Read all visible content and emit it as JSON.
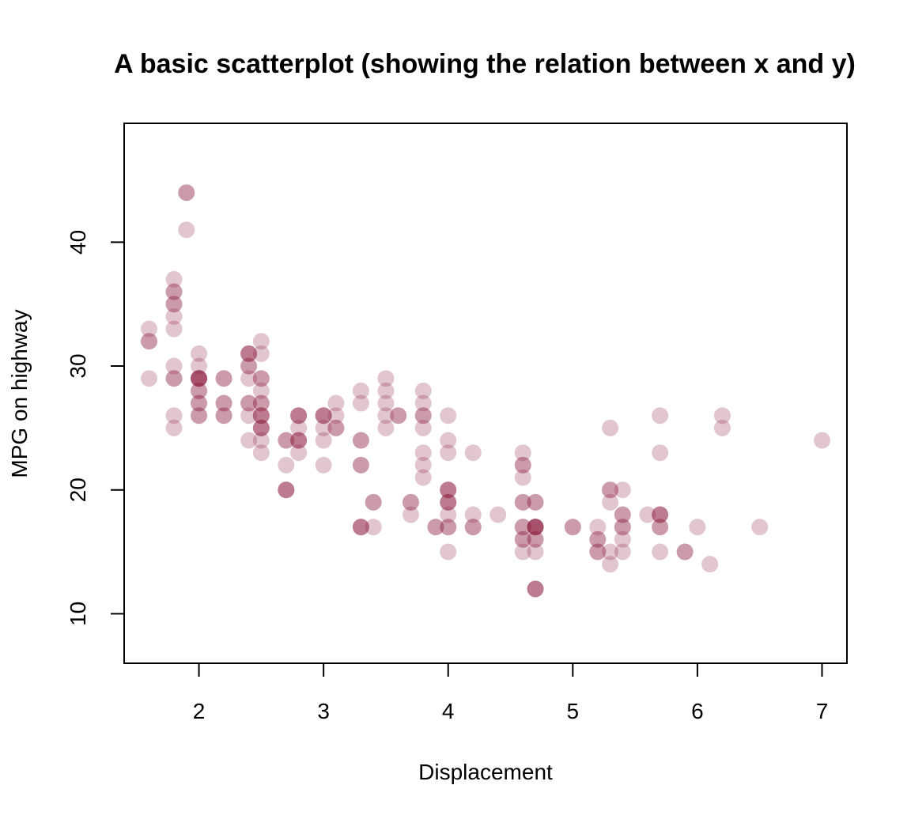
{
  "chart_data": {
    "type": "scatter",
    "title": "A basic scatterplot (showing the relation between x and y)",
    "xlabel": "Displacement",
    "ylabel": "MPG on highway",
    "xlim": [
      1.4,
      7.2
    ],
    "ylim": [
      6,
      49.6
    ],
    "x_ticks": [
      "2",
      "3",
      "4",
      "5",
      "6",
      "7"
    ],
    "y_ticks": [
      "10",
      "20",
      "30",
      "40"
    ],
    "grid": false,
    "legend": "none",
    "point_color": "#8B1A3F",
    "point_opacity": 0.25,
    "series": [
      {
        "points": [
          [
            1.6,
            33
          ],
          [
            1.6,
            32
          ],
          [
            1.6,
            32
          ],
          [
            1.6,
            29
          ],
          [
            1.8,
            37
          ],
          [
            1.8,
            36
          ],
          [
            1.8,
            36
          ],
          [
            1.8,
            35
          ],
          [
            1.8,
            35
          ],
          [
            1.8,
            34
          ],
          [
            1.8,
            33
          ],
          [
            1.8,
            30
          ],
          [
            1.8,
            29
          ],
          [
            1.8,
            29
          ],
          [
            1.8,
            26
          ],
          [
            1.8,
            25
          ],
          [
            1.9,
            44
          ],
          [
            1.9,
            44
          ],
          [
            1.9,
            41
          ],
          [
            2.0,
            31
          ],
          [
            2.0,
            30
          ],
          [
            2.0,
            29
          ],
          [
            2.0,
            29
          ],
          [
            2.0,
            29
          ],
          [
            2.0,
            29
          ],
          [
            2.0,
            29
          ],
          [
            2.0,
            28
          ],
          [
            2.0,
            28
          ],
          [
            2.0,
            27
          ],
          [
            2.0,
            27
          ],
          [
            2.0,
            26
          ],
          [
            2.0,
            26
          ],
          [
            2.2,
            29
          ],
          [
            2.2,
            29
          ],
          [
            2.2,
            27
          ],
          [
            2.2,
            27
          ],
          [
            2.2,
            26
          ],
          [
            2.2,
            26
          ],
          [
            2.4,
            31
          ],
          [
            2.4,
            31
          ],
          [
            2.4,
            31
          ],
          [
            2.4,
            30
          ],
          [
            2.4,
            30
          ],
          [
            2.4,
            29
          ],
          [
            2.4,
            27
          ],
          [
            2.4,
            27
          ],
          [
            2.4,
            26
          ],
          [
            2.4,
            24
          ],
          [
            2.5,
            32
          ],
          [
            2.5,
            31
          ],
          [
            2.5,
            29
          ],
          [
            2.5,
            29
          ],
          [
            2.5,
            28
          ],
          [
            2.5,
            27
          ],
          [
            2.5,
            27
          ],
          [
            2.5,
            26
          ],
          [
            2.5,
            26
          ],
          [
            2.5,
            26
          ],
          [
            2.5,
            25
          ],
          [
            2.5,
            25
          ],
          [
            2.5,
            25
          ],
          [
            2.5,
            24
          ],
          [
            2.5,
            23
          ],
          [
            2.7,
            24
          ],
          [
            2.7,
            24
          ],
          [
            2.7,
            22
          ],
          [
            2.7,
            20
          ],
          [
            2.7,
            20
          ],
          [
            2.7,
            20
          ],
          [
            2.8,
            26
          ],
          [
            2.8,
            26
          ],
          [
            2.8,
            26
          ],
          [
            2.8,
            25
          ],
          [
            2.8,
            24
          ],
          [
            2.8,
            24
          ],
          [
            2.8,
            24
          ],
          [
            2.8,
            23
          ],
          [
            3.0,
            26
          ],
          [
            3.0,
            26
          ],
          [
            3.0,
            26
          ],
          [
            3.0,
            25
          ],
          [
            3.0,
            24
          ],
          [
            3.0,
            22
          ],
          [
            3.1,
            27
          ],
          [
            3.1,
            26
          ],
          [
            3.1,
            25
          ],
          [
            3.1,
            25
          ],
          [
            3.3,
            28
          ],
          [
            3.3,
            27
          ],
          [
            3.3,
            24
          ],
          [
            3.3,
            24
          ],
          [
            3.3,
            22
          ],
          [
            3.3,
            22
          ],
          [
            3.3,
            17
          ],
          [
            3.3,
            17
          ],
          [
            3.3,
            17
          ],
          [
            3.4,
            19
          ],
          [
            3.4,
            19
          ],
          [
            3.4,
            17
          ],
          [
            3.5,
            29
          ],
          [
            3.5,
            28
          ],
          [
            3.5,
            27
          ],
          [
            3.5,
            26
          ],
          [
            3.5,
            25
          ],
          [
            3.6,
            26
          ],
          [
            3.6,
            26
          ],
          [
            3.7,
            19
          ],
          [
            3.7,
            19
          ],
          [
            3.7,
            18
          ],
          [
            3.8,
            28
          ],
          [
            3.8,
            27
          ],
          [
            3.8,
            26
          ],
          [
            3.8,
            26
          ],
          [
            3.8,
            25
          ],
          [
            3.8,
            23
          ],
          [
            3.8,
            22
          ],
          [
            3.8,
            21
          ],
          [
            3.9,
            17
          ],
          [
            3.9,
            17
          ],
          [
            4.0,
            26
          ],
          [
            4.0,
            24
          ],
          [
            4.0,
            23
          ],
          [
            4.0,
            20
          ],
          [
            4.0,
            20
          ],
          [
            4.0,
            20
          ],
          [
            4.0,
            19
          ],
          [
            4.0,
            19
          ],
          [
            4.0,
            19
          ],
          [
            4.0,
            18
          ],
          [
            4.0,
            17
          ],
          [
            4.0,
            17
          ],
          [
            4.0,
            15
          ],
          [
            4.2,
            23
          ],
          [
            4.2,
            18
          ],
          [
            4.2,
            17
          ],
          [
            4.2,
            17
          ],
          [
            4.4,
            18
          ],
          [
            4.6,
            23
          ],
          [
            4.6,
            22
          ],
          [
            4.6,
            22
          ],
          [
            4.6,
            21
          ],
          [
            4.6,
            19
          ],
          [
            4.6,
            19
          ],
          [
            4.6,
            17
          ],
          [
            4.6,
            17
          ],
          [
            4.6,
            16
          ],
          [
            4.6,
            16
          ],
          [
            4.6,
            15
          ],
          [
            4.7,
            19
          ],
          [
            4.7,
            19
          ],
          [
            4.7,
            17
          ],
          [
            4.7,
            17
          ],
          [
            4.7,
            17
          ],
          [
            4.7,
            17
          ],
          [
            4.7,
            17
          ],
          [
            4.7,
            16
          ],
          [
            4.7,
            16
          ],
          [
            4.7,
            15
          ],
          [
            4.7,
            12
          ],
          [
            4.7,
            12
          ],
          [
            4.7,
            12
          ],
          [
            5.0,
            17
          ],
          [
            5.0,
            17
          ],
          [
            5.2,
            17
          ],
          [
            5.2,
            16
          ],
          [
            5.2,
            16
          ],
          [
            5.2,
            15
          ],
          [
            5.2,
            15
          ],
          [
            5.3,
            25
          ],
          [
            5.3,
            20
          ],
          [
            5.3,
            20
          ],
          [
            5.3,
            19
          ],
          [
            5.3,
            15
          ],
          [
            5.3,
            14
          ],
          [
            5.4,
            20
          ],
          [
            5.4,
            18
          ],
          [
            5.4,
            18
          ],
          [
            5.4,
            17
          ],
          [
            5.4,
            17
          ],
          [
            5.4,
            16
          ],
          [
            5.4,
            15
          ],
          [
            5.6,
            18
          ],
          [
            5.7,
            26
          ],
          [
            5.7,
            23
          ],
          [
            5.7,
            18
          ],
          [
            5.7,
            18
          ],
          [
            5.7,
            18
          ],
          [
            5.7,
            17
          ],
          [
            5.7,
            17
          ],
          [
            5.7,
            15
          ],
          [
            5.9,
            15
          ],
          [
            5.9,
            15
          ],
          [
            6.0,
            17
          ],
          [
            6.1,
            14
          ],
          [
            6.2,
            26
          ],
          [
            6.2,
            25
          ],
          [
            6.5,
            17
          ],
          [
            7.0,
            24
          ]
        ]
      }
    ]
  }
}
